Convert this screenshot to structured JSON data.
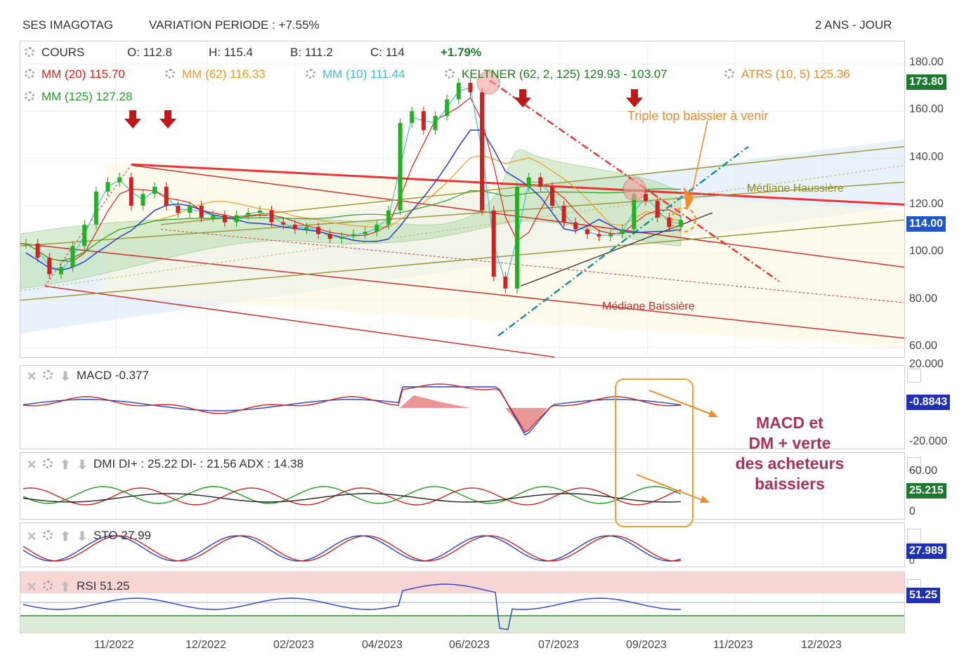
{
  "header": {
    "instrument": "SES IMAGOTAG",
    "variation": "VARIATION PERIODE : +7.55%",
    "period": "2 ANS - JOUR"
  },
  "main": {
    "cours_label": "COURS",
    "ohlc": {
      "o": "O: 112.8",
      "h": "H: 115.4",
      "b": "B: 111.2",
      "c": "C: 114",
      "chg": "+1.79%"
    },
    "indicators": [
      {
        "name": "MM (20)",
        "value": "115.70",
        "color": "#e0201a"
      },
      {
        "name": "MM (62)",
        "value": "116.33",
        "color": "#f39a1e"
      },
      {
        "name": "MM (10)",
        "value": "111.44",
        "color": "#3ec0d0"
      },
      {
        "name": "KELTNER (62, 2, 125)",
        "value": "129.93 - 103.07",
        "color": "#1e7a1e"
      },
      {
        "name": "ATRS (10, 5)",
        "value": "125.36",
        "color": "#f08a2a"
      },
      {
        "name": "MM (125)",
        "value": "127.28",
        "color": "#23a023"
      }
    ],
    "price_tags": {
      "top": "173.80",
      "last": "114.00"
    },
    "annotations": {
      "triple_top": "Triple top baissier à venir",
      "median_up": "Médiane Haussière",
      "median_down": "Médiane Baissière",
      "comment": "MACD et\nDM + verte\ndes acheteurs\nbaissiers"
    },
    "colors": {
      "last_tag": "#1f56c8",
      "top_tag": "#1b7a2e",
      "comment": "#a8325a",
      "annot": "#f08a2a"
    }
  },
  "macd": {
    "title": "MACD",
    "value": "-0.377",
    "tag": "-0.8843",
    "axis": [
      "20.000",
      "-20.000"
    ]
  },
  "dmi": {
    "title": "DMI",
    "value": "DI+ : 25.22 DI- : 21.56 ADX : 14.38",
    "tag": "25.215",
    "axis": [
      "60.00",
      "0"
    ]
  },
  "sto": {
    "title": "STO",
    "value": "27.99",
    "tag": "27.989",
    "axis": [
      "0"
    ]
  },
  "rsi": {
    "title": "RSI",
    "value": "51.25",
    "tag": "51.25"
  },
  "chart_data": {
    "type": "line",
    "title": "SES IMAGOTAG",
    "ylim": [
      55,
      190
    ],
    "yticks": [
      "180.00",
      "160.00",
      "140.00",
      "120.00",
      "100.00",
      "80.00",
      "60.00"
    ],
    "x_ticks": [
      "11/2022",
      "12/2022",
      "02/2023",
      "04/2023",
      "06/2023",
      "07/2023",
      "09/2023",
      "11/2023",
      "12/2023"
    ],
    "series": [
      {
        "name": "COURS",
        "values": [
          104,
          98,
          91,
          94,
          103,
          112,
          126,
          130,
          132,
          120,
          125,
          128,
          120,
          117,
          120,
          115,
          116,
          113,
          116,
          117,
          118,
          113,
          112,
          110,
          111,
          108,
          106,
          107,
          108,
          109,
          112,
          118,
          155,
          160,
          152,
          158,
          165,
          172,
          168,
          118,
          90,
          85,
          128,
          132,
          128,
          120,
          113,
          110,
          108,
          107,
          108,
          110,
          125,
          122,
          115,
          111,
          114
        ]
      }
    ]
  }
}
